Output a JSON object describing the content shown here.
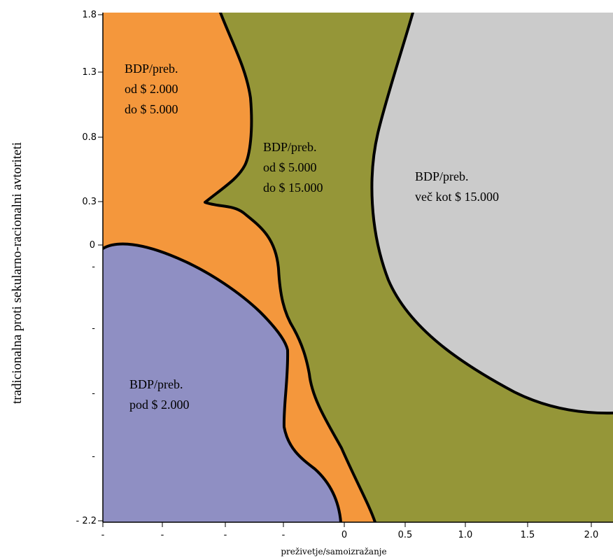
{
  "chart_data": {
    "type": "area",
    "xlabel": "preživetje/samoizražanje",
    "ylabel": "tradicionalna proti sekularno-racionalni avtoriteti",
    "x_ticks": [
      "-",
      "-",
      "-",
      "-",
      "0",
      "0.5",
      "1.0",
      "1.5",
      "2.0"
    ],
    "y_ticks": [
      "1.8",
      "1.3",
      "0.8",
      "0.3",
      "0",
      "-",
      "-",
      "-",
      "-",
      "- 2.2"
    ],
    "grid": false,
    "regions": [
      {
        "label": [
          "BDP/preb.",
          "od $ 2.000",
          "do $ 5.000"
        ],
        "color": "#f4973c"
      },
      {
        "label": [
          "BDP/preb.",
          "od $ 5.000",
          "do $ 15.000"
        ],
        "color": "#959638"
      },
      {
        "label": [
          "BDP/preb.",
          "več kot $ 15.000"
        ],
        "color": "#cbcbcb"
      },
      {
        "label": [
          "BDP/preb.",
          "pod $ 2.000"
        ],
        "color": "#8f8fc3"
      }
    ]
  }
}
